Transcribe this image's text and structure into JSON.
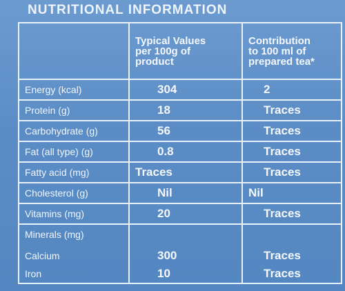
{
  "title": "NUTRITIONAL INFORMATION",
  "headers": {
    "col1_line1": "Typical Values",
    "col1_line2": "per 100g of",
    "col1_line3": "product",
    "col2_line1": "Contribution",
    "col2_line2": "to 100 ml of",
    "col2_line3": "prepared tea*"
  },
  "rows": [
    {
      "name": "Energy (kcal)",
      "per100g": "304",
      "tea": "2"
    },
    {
      "name": "Protein (g)",
      "per100g": "18",
      "tea": "Traces"
    },
    {
      "name": "Carbohydrate (g)",
      "per100g": "56",
      "tea": "Traces"
    },
    {
      "name": "Fat (all type) (g)",
      "per100g": "0.8",
      "tea": "Traces"
    },
    {
      "name": "Fatty acid (mg)",
      "per100g": "Traces",
      "tea": "Traces"
    },
    {
      "name": "Cholesterol (g)",
      "per100g": "Nil",
      "tea": "Nil"
    },
    {
      "name": "Vitamins (mg)",
      "per100g": "20",
      "tea": "Traces"
    }
  ],
  "minerals": {
    "label": "Minerals (mg)",
    "items": [
      {
        "name": "Calcium",
        "per100g": "300",
        "tea": "Traces"
      },
      {
        "name": "Iron",
        "per100g": "10",
        "tea": "Traces"
      }
    ]
  }
}
